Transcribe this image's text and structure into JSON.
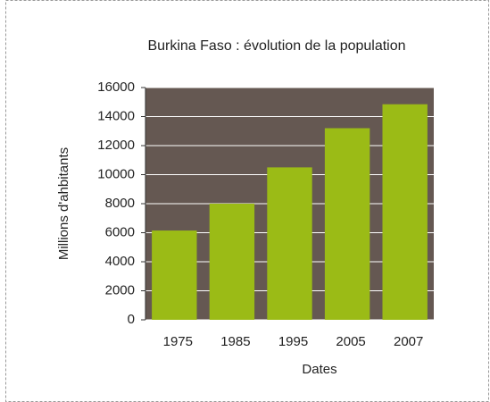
{
  "chart_data": {
    "type": "bar",
    "title": "Burkina Faso : évolution de la population",
    "x_label": "Dates",
    "y_label": "Millions d'ahbitants",
    "categories": [
      "1975",
      "1985",
      "1995",
      "2005",
      "2007"
    ],
    "values": [
      6150,
      8000,
      10500,
      13200,
      14850
    ],
    "color": "#9bbb16",
    "ylim": [
      0,
      16000
    ],
    "yticks": [
      0,
      2000,
      4000,
      6000,
      8000,
      10000,
      12000,
      14000,
      16000
    ],
    "grid": true
  }
}
